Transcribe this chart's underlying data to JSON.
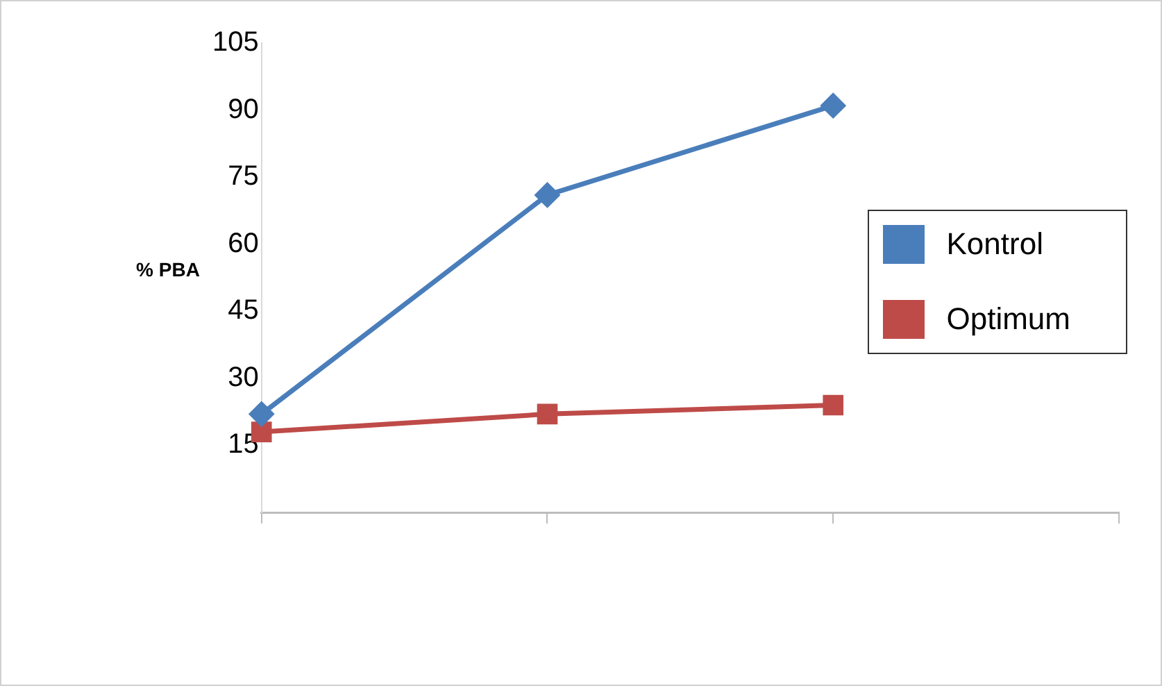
{
  "chart_data": {
    "type": "line",
    "ylabel": "% PBA",
    "categories": [
      null,
      null,
      null,
      null
    ],
    "series": [
      {
        "name": "Kontrol",
        "color": "#4a7ebb",
        "values": [
          22,
          71,
          91,
          null
        ],
        "marker": "diamond"
      },
      {
        "name": "Optimum",
        "color": "#be4b48",
        "values": [
          18,
          22,
          24,
          null
        ],
        "marker": "square"
      }
    ],
    "ylim": [
      0,
      105
    ],
    "yticks": [
      15,
      30,
      45,
      60,
      75,
      90,
      105
    ],
    "grid": false,
    "legend": "right",
    "tick_labels": "y"
  }
}
